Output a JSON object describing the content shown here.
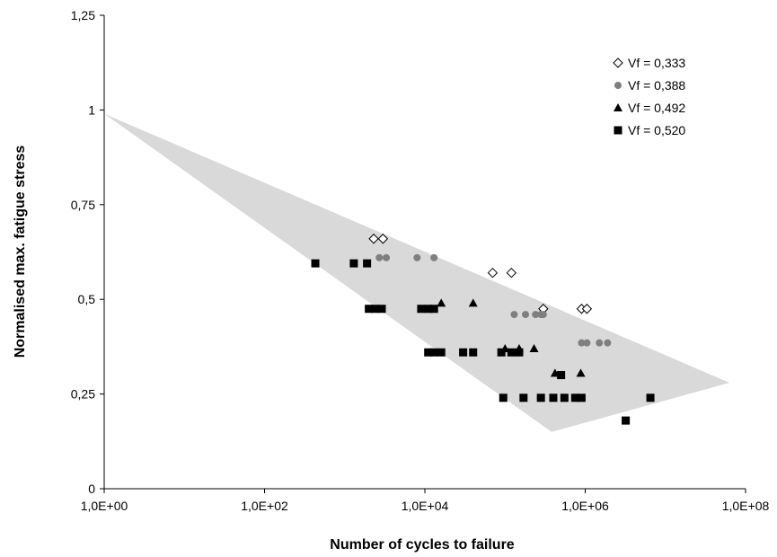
{
  "chart_data": {
    "type": "scatter",
    "title": "",
    "xlabel": "Number of cycles to failure",
    "ylabel": "Normalised max. fatigue stress",
    "x_scale": "log",
    "xlim": [
      1,
      100000000
    ],
    "ylim": [
      0,
      1.25
    ],
    "x_ticks": [
      {
        "value": 1,
        "label": "1,0E+00"
      },
      {
        "value": 100,
        "label": "1,0E+02"
      },
      {
        "value": 10000,
        "label": "1,0E+04"
      },
      {
        "value": 1000000,
        "label": "1,0E+06"
      },
      {
        "value": 100000000,
        "label": "1,0E+08"
      }
    ],
    "y_ticks": [
      {
        "value": 0,
        "label": "0"
      },
      {
        "value": 0.25,
        "label": "0,25"
      },
      {
        "value": 0.5,
        "label": "0,5"
      },
      {
        "value": 0.75,
        "label": "0,75"
      },
      {
        "value": 1,
        "label": "1"
      },
      {
        "value": 1.25,
        "label": "1,25"
      }
    ],
    "grid": false,
    "legend_position": "top-right",
    "scatter_band": {
      "color": "#d9d9d9",
      "polygon": [
        [
          1,
          0.99
        ],
        [
          63000000,
          0.28
        ],
        [
          380000,
          0.15
        ]
      ]
    },
    "series": [
      {
        "name": "Vf = 0,333",
        "marker": "diamond-open",
        "color": "#000000",
        "points": [
          [
            2300,
            0.66
          ],
          [
            3000,
            0.66
          ],
          [
            70000,
            0.57
          ],
          [
            120000,
            0.57
          ],
          [
            300000,
            0.475
          ],
          [
            900000,
            0.475
          ],
          [
            1050000,
            0.475
          ]
        ]
      },
      {
        "name": "Vf = 0,388",
        "marker": "circle",
        "color": "#7f7f7f",
        "points": [
          [
            2700,
            0.61
          ],
          [
            3300,
            0.61
          ],
          [
            8000,
            0.61
          ],
          [
            13000,
            0.61
          ],
          [
            130000,
            0.46
          ],
          [
            180000,
            0.46
          ],
          [
            240000,
            0.46
          ],
          [
            280000,
            0.46
          ],
          [
            300000,
            0.46
          ],
          [
            900000,
            0.385
          ],
          [
            1050000,
            0.385
          ],
          [
            1500000,
            0.385
          ],
          [
            1900000,
            0.385
          ]
        ]
      },
      {
        "name": "Vf = 0,492",
        "marker": "triangle",
        "color": "#000000",
        "points": [
          [
            16000,
            0.49
          ],
          [
            40000,
            0.49
          ],
          [
            100000,
            0.37
          ],
          [
            150000,
            0.37
          ],
          [
            230000,
            0.37
          ],
          [
            420000,
            0.305
          ],
          [
            880000,
            0.305
          ]
        ]
      },
      {
        "name": "Vf = 0,520",
        "marker": "square",
        "color": "#000000",
        "points": [
          [
            430,
            0.595
          ],
          [
            1300,
            0.595
          ],
          [
            1900,
            0.595
          ],
          [
            2000,
            0.475
          ],
          [
            2400,
            0.475
          ],
          [
            2900,
            0.475
          ],
          [
            9000,
            0.475
          ],
          [
            11000,
            0.475
          ],
          [
            13000,
            0.475
          ],
          [
            11000,
            0.36
          ],
          [
            13000,
            0.36
          ],
          [
            16000,
            0.36
          ],
          [
            30000,
            0.36
          ],
          [
            40000,
            0.36
          ],
          [
            90000,
            0.36
          ],
          [
            120000,
            0.36
          ],
          [
            150000,
            0.36
          ],
          [
            500000,
            0.3
          ],
          [
            95000,
            0.24
          ],
          [
            170000,
            0.24
          ],
          [
            280000,
            0.24
          ],
          [
            400000,
            0.24
          ],
          [
            550000,
            0.24
          ],
          [
            750000,
            0.24
          ],
          [
            900000,
            0.24
          ],
          [
            6500000,
            0.24
          ],
          [
            3200000,
            0.18
          ]
        ]
      }
    ]
  }
}
